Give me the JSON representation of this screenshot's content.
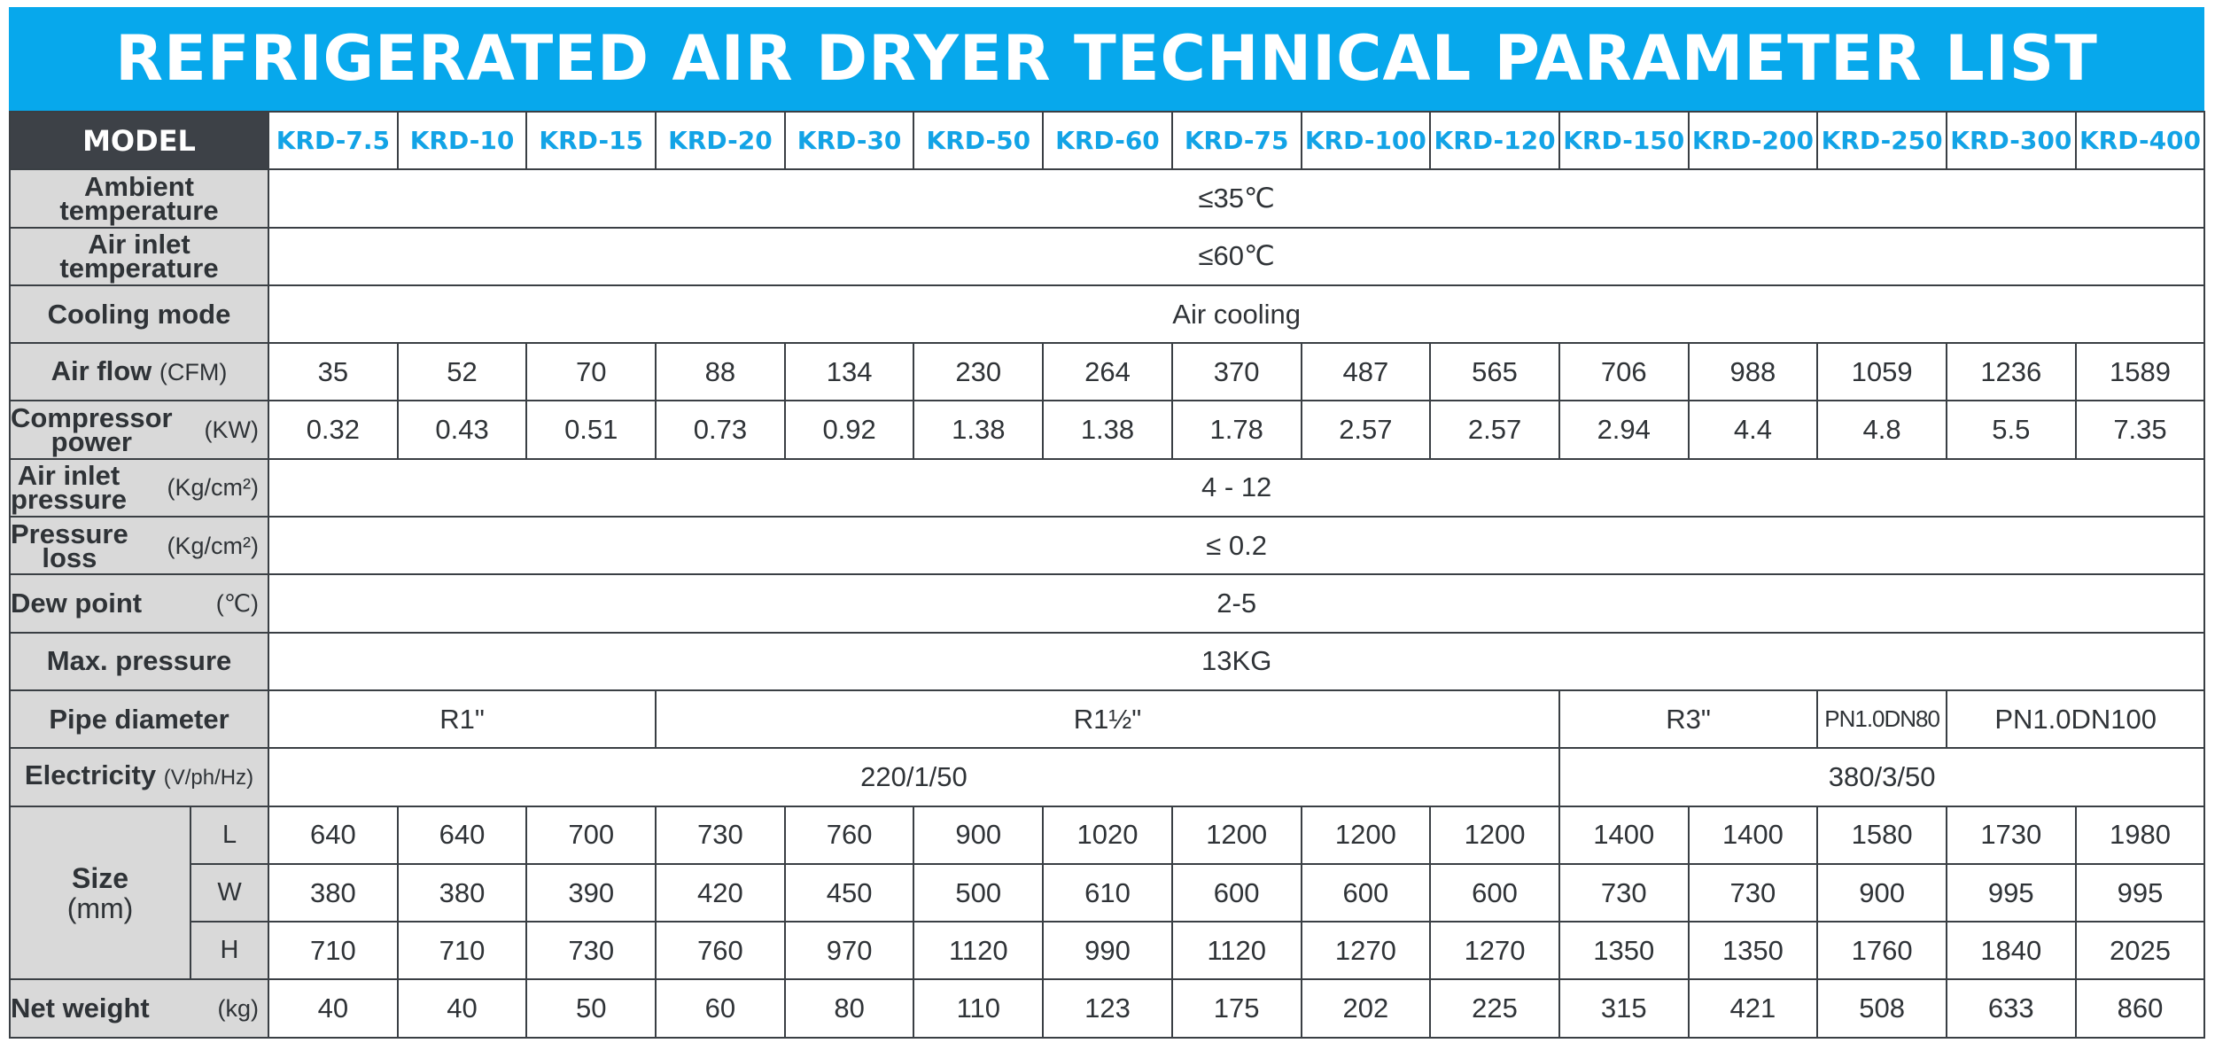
{
  "title": "REFRIGERATED AIR DRYER TECHNICAL PARAMETER LIST",
  "header": {
    "model_label": "MODEL",
    "models": [
      "KRD-7.5",
      "KRD-10",
      "KRD-15",
      "KRD-20",
      "KRD-30",
      "KRD-50",
      "KRD-60",
      "KRD-75",
      "KRD-100",
      "KRD-120",
      "KRD-150",
      "KRD-200",
      "KRD-250",
      "KRD-300",
      "KRD-400"
    ]
  },
  "rows": {
    "ambient": {
      "label_1": "Ambient",
      "label_2": "temperature",
      "value": "≤35℃"
    },
    "inlet_temp": {
      "label_1": "Air inlet",
      "label_2": "temperature",
      "value": "≤60℃"
    },
    "cooling": {
      "label": "Cooling mode",
      "value": "Air cooling"
    },
    "airflow": {
      "label": "Air flow",
      "unit": "(CFM)",
      "values": [
        "35",
        "52",
        "70",
        "88",
        "134",
        "230",
        "264",
        "370",
        "487",
        "565",
        "706",
        "988",
        "1059",
        "1236",
        "1589"
      ]
    },
    "power": {
      "label_1": "Compressor",
      "label_2": "power",
      "unit": "(KW)",
      "values": [
        "0.32",
        "0.43",
        "0.51",
        "0.73",
        "0.92",
        "1.38",
        "1.38",
        "1.78",
        "2.57",
        "2.57",
        "2.94",
        "4.4",
        "4.8",
        "5.5",
        "7.35"
      ]
    },
    "inlet_pressure": {
      "label_1": "Air inlet",
      "label_2": "pressure",
      "unit": "(Kg/cm²)",
      "value": "4 - 12"
    },
    "pressure_loss": {
      "label_1": "Pressure",
      "label_2": "loss",
      "unit": "(Kg/cm²)",
      "value": "≤ 0.2"
    },
    "dew_point": {
      "label": "Dew point",
      "unit": "(℃)",
      "value": "2-5"
    },
    "max_pressure": {
      "label": "Max. pressure",
      "value": "13KG"
    },
    "pipe": {
      "label": "Pipe diameter",
      "values": [
        "R1\"",
        "R1½\"",
        "R3\"",
        "PN1.0DN80",
        "PN1.0DN100"
      ]
    },
    "electricity": {
      "label": "Electricity",
      "unit": "(V/ph/Hz)",
      "values": [
        "220/1/50",
        "380/3/50"
      ]
    },
    "size": {
      "label": "Size",
      "unit": "(mm)",
      "L": {
        "dim": "L",
        "values": [
          "640",
          "640",
          "700",
          "730",
          "760",
          "900",
          "1020",
          "1200",
          "1200",
          "1200",
          "1400",
          "1400",
          "1580",
          "1730",
          "1980"
        ]
      },
      "W": {
        "dim": "W",
        "values": [
          "380",
          "380",
          "390",
          "420",
          "450",
          "500",
          "610",
          "600",
          "600",
          "600",
          "730",
          "730",
          "900",
          "995",
          "995"
        ]
      },
      "H": {
        "dim": "H",
        "values": [
          "710",
          "710",
          "730",
          "760",
          "970",
          "1120",
          "990",
          "1120",
          "1270",
          "1270",
          "1350",
          "1350",
          "1760",
          "1840",
          "2025"
        ]
      }
    },
    "weight": {
      "label": "Net weight",
      "unit": "(kg)",
      "values": [
        "40",
        "40",
        "50",
        "60",
        "80",
        "110",
        "123",
        "175",
        "202",
        "225",
        "315",
        "421",
        "508",
        "633",
        "860"
      ]
    }
  }
}
